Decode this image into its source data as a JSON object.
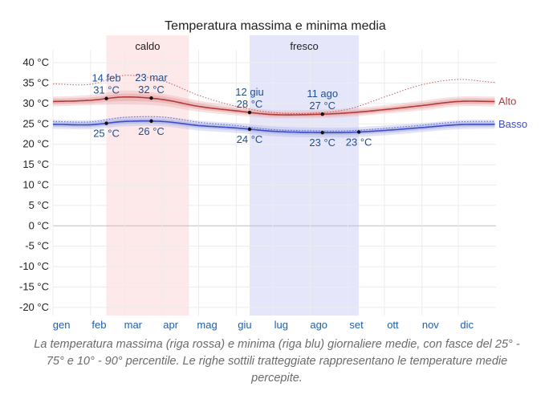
{
  "caption": "La temperatura massima (riga rossa) e minima (riga blu) giornaliere medie, con fasce del 25° - 75° e 10° - 90° percentile. Le righe sottili tratteggiate rappresentano le temperature medie percepite.",
  "chart_data": {
    "type": "line",
    "title": "Temperatura massima e minima media",
    "xlabel": "",
    "ylabel": "",
    "ylim": [
      -22,
      42
    ],
    "y_ticks": [
      40,
      35,
      30,
      25,
      20,
      15,
      10,
      5,
      0,
      -5,
      -10,
      -15,
      -20
    ],
    "y_unit": "°C",
    "month_labels": [
      "gen",
      "feb",
      "mar",
      "apr",
      "mag",
      "giu",
      "lug",
      "ago",
      "set",
      "ott",
      "nov",
      "dic"
    ],
    "grid": true,
    "seasons": [
      {
        "name": "caldo",
        "start": "02-14",
        "end": "04-23",
        "color": "#fde8ea"
      },
      {
        "name": "fresco",
        "start": "06-12",
        "end": "09-10",
        "color": "#e6e6fb"
      }
    ],
    "series": [
      {
        "name": "Alto",
        "color": "#b03a3a",
        "band_color": "#e8a9aa",
        "months": [
          "01-01",
          "02-01",
          "03-01",
          "04-01",
          "05-01",
          "06-01",
          "07-01",
          "08-01",
          "09-01",
          "10-01",
          "11-01",
          "12-01",
          "12-31"
        ],
        "mean": [
          30.5,
          30.8,
          31.6,
          31.0,
          29.3,
          28.2,
          27.3,
          27.3,
          27.7,
          28.5,
          29.5,
          30.5,
          30.5
        ],
        "p25": [
          29.8,
          30.1,
          30.6,
          30.2,
          28.6,
          27.6,
          26.8,
          26.8,
          27.1,
          27.9,
          28.8,
          29.8,
          29.8
        ],
        "p75": [
          31.2,
          31.5,
          32.4,
          31.8,
          30.1,
          28.8,
          27.9,
          27.9,
          28.3,
          29.1,
          30.2,
          31.2,
          31.2
        ],
        "p10": [
          29.3,
          29.6,
          29.8,
          29.4,
          28.0,
          27.1,
          26.4,
          26.4,
          26.7,
          27.5,
          28.3,
          29.3,
          29.3
        ],
        "p90": [
          31.7,
          32.1,
          33.2,
          32.4,
          30.7,
          29.4,
          28.4,
          28.4,
          28.8,
          29.6,
          30.7,
          31.7,
          31.7
        ],
        "feels": [
          34.8,
          34.7,
          36.9,
          35.6,
          32.0,
          29.3,
          27.8,
          27.6,
          28.6,
          31.6,
          34.6,
          35.9,
          35.2
        ]
      },
      {
        "name": "Basso",
        "color": "#3d4cc2",
        "band_color": "#a9b0e6",
        "months": [
          "01-01",
          "02-01",
          "03-01",
          "04-01",
          "05-01",
          "06-01",
          "07-01",
          "08-01",
          "09-01",
          "10-01",
          "11-01",
          "12-01",
          "12-31"
        ],
        "mean": [
          24.9,
          24.8,
          25.6,
          25.6,
          24.6,
          24.0,
          23.2,
          22.9,
          22.9,
          23.4,
          24.1,
          24.8,
          24.9
        ],
        "p25": [
          24.3,
          24.2,
          25.0,
          25.0,
          24.0,
          23.4,
          22.6,
          22.3,
          22.3,
          22.8,
          23.5,
          24.2,
          24.3
        ],
        "p75": [
          25.5,
          25.4,
          26.2,
          26.2,
          25.2,
          24.6,
          23.8,
          23.5,
          23.5,
          24.0,
          24.7,
          25.4,
          25.5
        ],
        "p10": [
          23.8,
          23.7,
          24.4,
          24.4,
          23.4,
          22.8,
          22.0,
          21.7,
          21.7,
          22.2,
          23.0,
          23.7,
          23.8
        ],
        "p90": [
          26.0,
          25.9,
          26.8,
          26.8,
          25.8,
          25.2,
          24.4,
          24.1,
          24.1,
          24.6,
          25.2,
          25.9,
          26.0
        ],
        "feels": [
          25.6,
          25.5,
          26.6,
          26.7,
          25.4,
          24.6,
          23.6,
          23.3,
          23.3,
          23.9,
          24.7,
          25.5,
          25.6
        ]
      }
    ],
    "annotations": [
      {
        "series": "Alto",
        "date": "02-14",
        "date_label": "14 feb",
        "value": 31,
        "value_label": "31 °C",
        "position": "above"
      },
      {
        "series": "Alto",
        "date": "03-23",
        "date_label": "23 mar",
        "value": 32,
        "value_label": "32 °C",
        "position": "above"
      },
      {
        "series": "Alto",
        "date": "06-12",
        "date_label": "12 giu",
        "value": 28,
        "value_label": "28 °C",
        "position": "above"
      },
      {
        "series": "Alto",
        "date": "08-11",
        "date_label": "11 ago",
        "value": 27,
        "value_label": "27 °C",
        "position": "above"
      },
      {
        "series": "Basso",
        "date": "02-14",
        "date_label": "",
        "value": 25,
        "value_label": "25 °C",
        "position": "below"
      },
      {
        "series": "Basso",
        "date": "03-23",
        "date_label": "",
        "value": 26,
        "value_label": "26 °C",
        "position": "below"
      },
      {
        "series": "Basso",
        "date": "06-12",
        "date_label": "",
        "value": 24,
        "value_label": "24 °C",
        "position": "below"
      },
      {
        "series": "Basso",
        "date": "08-11",
        "date_label": "",
        "value": 23,
        "value_label": "23 °C",
        "position": "below"
      },
      {
        "series": "Basso",
        "date": "09-10",
        "date_label": "",
        "value": 23,
        "value_label": "23 °C",
        "position": "below"
      }
    ]
  }
}
